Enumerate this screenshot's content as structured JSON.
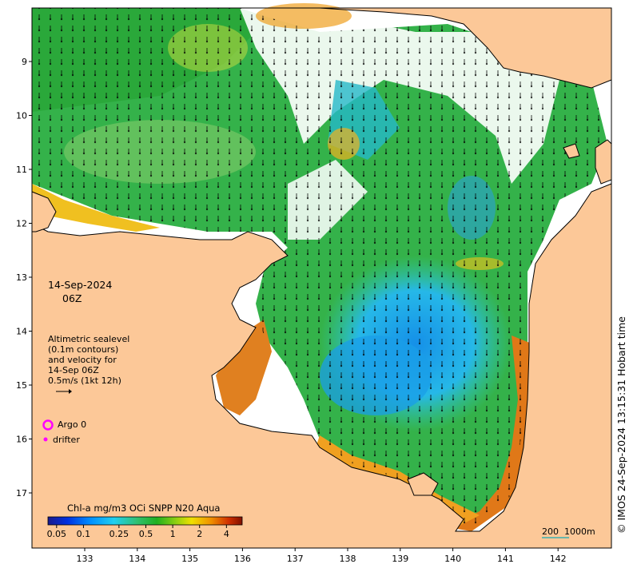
{
  "map": {
    "date": "14-Sep-2024",
    "time": "06Z",
    "sealevel_legend": "Altimetric sealevel\n(0.1m contours)\nand velocity for\n14-Sep 06Z\n0.5m/s (1kt 12h)",
    "argo_label": "Argo 0",
    "drifter_label": "drifter",
    "colorbar_title": "Chl-a mg/m3 OCi SNPP N20 Aqua",
    "colorbar_ticks": [
      "0.05",
      "0.1",
      "0.25",
      "0.5",
      "1",
      "2",
      "4"
    ],
    "lat_ticks": [
      "9",
      "10",
      "11",
      "12",
      "13",
      "14",
      "15",
      "16",
      "17"
    ],
    "lon_ticks": [
      "133",
      "134",
      "135",
      "136",
      "137",
      "138",
      "139",
      "140",
      "141",
      "142"
    ],
    "copyright": "© IMOS 24-Sep-2024 13:15:31 Hobart time",
    "scale_label": "200  1000m",
    "colors": {
      "land": "#fcc898",
      "coast": "#000000",
      "argo": "#ff00ff",
      "drifter": "#ff00ff"
    }
  }
}
